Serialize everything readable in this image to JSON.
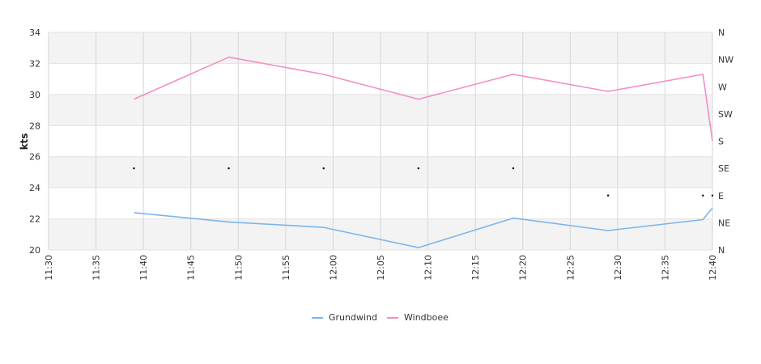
{
  "chart_data": {
    "type": "line",
    "ylabel": "kts",
    "ylim": [
      20,
      34
    ],
    "y_ticks": [
      20,
      22,
      24,
      26,
      28,
      30,
      32,
      34
    ],
    "x_ticks": [
      "11:30",
      "11:35",
      "11:40",
      "11:45",
      "11:50",
      "11:55",
      "12:00",
      "12:05",
      "12:10",
      "12:15",
      "12:20",
      "12:25",
      "12:30",
      "12:35",
      "12:40"
    ],
    "x_range": [
      "11:30",
      "12:40"
    ],
    "right_axis": {
      "labels": [
        "N",
        "NE",
        "E",
        "SE",
        "S",
        "SW",
        "W",
        "NW",
        "N"
      ]
    },
    "grid": true,
    "legend_position": "bottom-center",
    "series": [
      {
        "name": "Grundwind",
        "color": "#7cb5ec",
        "points": [
          [
            "11:39",
            22.4
          ],
          [
            "11:49",
            21.8
          ],
          [
            "11:59",
            21.45
          ],
          [
            "12:09",
            20.15
          ],
          [
            "12:19",
            22.05
          ],
          [
            "12:29",
            21.25
          ],
          [
            "12:39",
            21.95
          ],
          [
            "12:40",
            22.7
          ]
        ]
      },
      {
        "name": "Windboee",
        "color": "#f28fc4",
        "points": [
          [
            "11:39",
            29.7
          ],
          [
            "11:49",
            32.4
          ],
          [
            "11:59",
            31.3
          ],
          [
            "12:09",
            29.7
          ],
          [
            "12:19",
            31.3
          ],
          [
            "12:29",
            30.2
          ],
          [
            "12:39",
            31.3
          ],
          [
            "12:40",
            27.0
          ]
        ]
      }
    ],
    "direction_markers": {
      "axis": "right",
      "points": [
        [
          "11:39",
          "SE"
        ],
        [
          "11:49",
          "SE"
        ],
        [
          "11:59",
          "SE"
        ],
        [
          "12:09",
          "SE"
        ],
        [
          "12:19",
          "SE"
        ],
        [
          "12:29",
          "E"
        ],
        [
          "12:39",
          "E"
        ],
        [
          "12:40",
          "E"
        ]
      ]
    }
  }
}
